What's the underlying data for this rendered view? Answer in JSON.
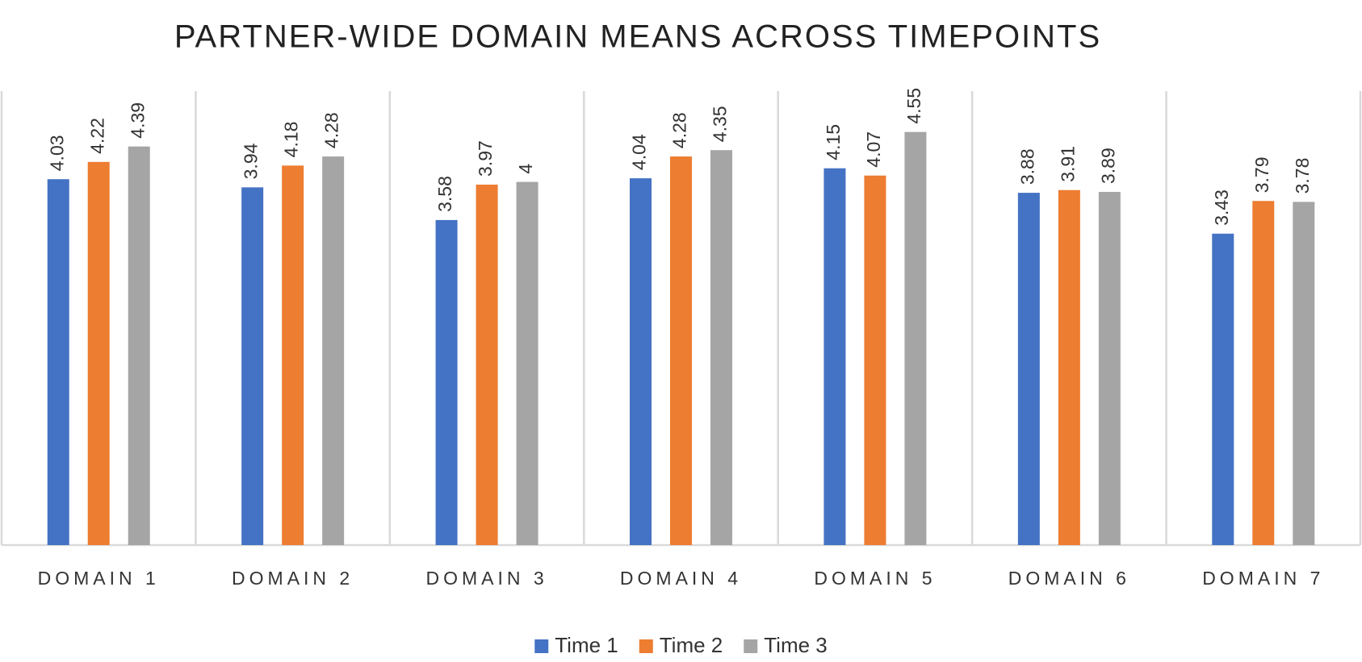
{
  "chart_data": {
    "type": "bar",
    "title": "PARTNER-WIDE DOMAIN MEANS ACROSS TIMEPOINTS",
    "categories": [
      "DOMAIN 1",
      "DOMAIN 2",
      "DOMAIN 3",
      "DOMAIN 4",
      "DOMAIN 5",
      "DOMAIN 6",
      "DOMAIN 7"
    ],
    "series": [
      {
        "name": "Time 1",
        "color": "#4472c4",
        "values": [
          4.03,
          3.94,
          3.58,
          4.04,
          4.15,
          3.88,
          3.43
        ]
      },
      {
        "name": "Time 2",
        "color": "#ed7d31",
        "values": [
          4.22,
          4.18,
          3.97,
          4.28,
          4.07,
          3.91,
          3.79
        ]
      },
      {
        "name": "Time 3",
        "color": "#a5a5a5",
        "values": [
          4.39,
          4.28,
          4,
          4.35,
          4.55,
          3.89,
          3.78
        ]
      }
    ],
    "ylim": [
      0,
      5
    ],
    "legend": "bottom"
  }
}
